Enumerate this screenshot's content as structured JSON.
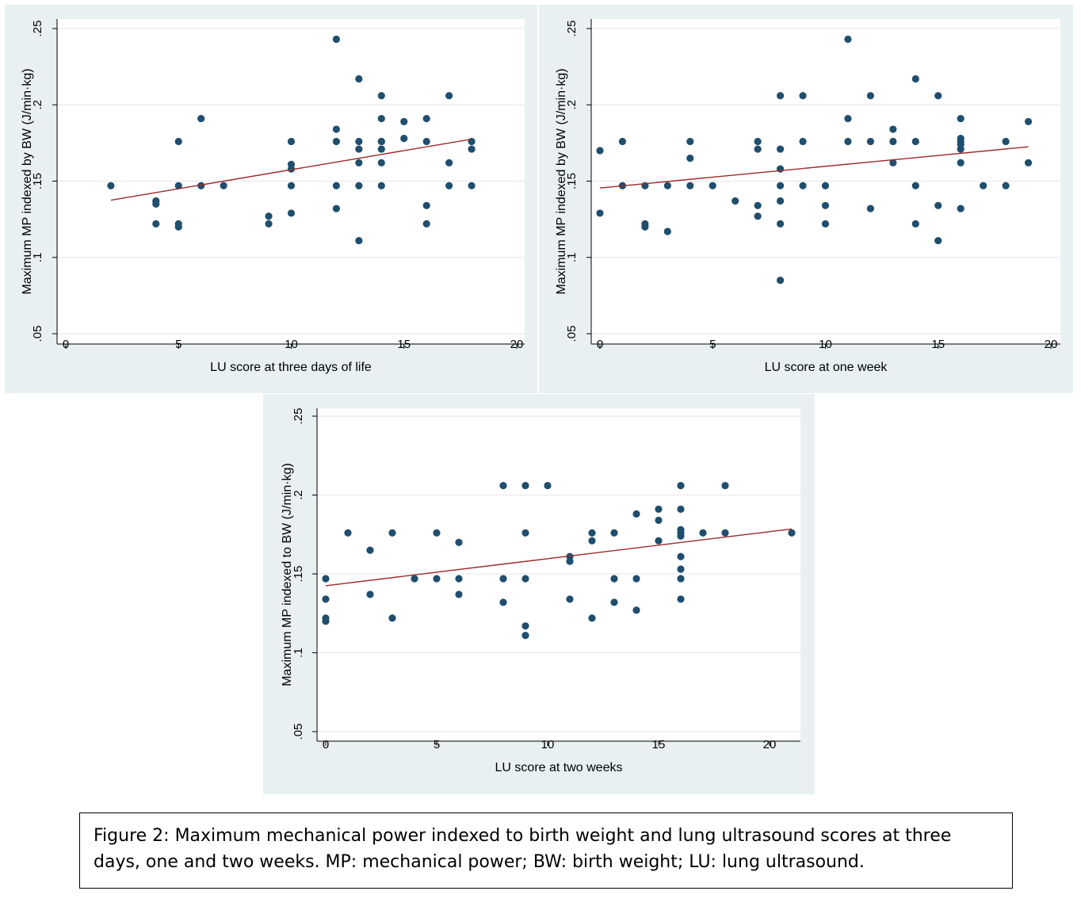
{
  "colors": {
    "panel_bg": "#e9f0f2",
    "plot_bg": "#ffffff",
    "points": "#1f4e6e",
    "fit_line": "#9b2b2b",
    "grid": "#e6e6e6"
  },
  "caption": "Figure 2: Maximum mechanical power indexed to birth weight and lung ultrasound scores at three days, one and two weeks. MP: mechanical power; BW: birth weight; LU: lung ultrasound.",
  "chart_data": [
    {
      "type": "scatter",
      "xlabel": "LU score at three days of life",
      "ylabel": "Maximum MP indexed by BW (J/min·kg)",
      "xlim": [
        0,
        20
      ],
      "ylim": [
        0.05,
        0.25
      ],
      "xticks": [
        "0",
        "5",
        "10",
        "15",
        "20"
      ],
      "yticks": [
        ".05",
        ".1",
        ".15",
        ".2",
        ".25"
      ],
      "grid": true,
      "points": [
        [
          2,
          0.147
        ],
        [
          4,
          0.137
        ],
        [
          4,
          0.135
        ],
        [
          4,
          0.122
        ],
        [
          5,
          0.176
        ],
        [
          5,
          0.147
        ],
        [
          5,
          0.122
        ],
        [
          5,
          0.12
        ],
        [
          6,
          0.191
        ],
        [
          6,
          0.147
        ],
        [
          7,
          0.147
        ],
        [
          9,
          0.127
        ],
        [
          9,
          0.122
        ],
        [
          10,
          0.176
        ],
        [
          10,
          0.161
        ],
        [
          10,
          0.158
        ],
        [
          10,
          0.147
        ],
        [
          10,
          0.129
        ],
        [
          12,
          0.243
        ],
        [
          12,
          0.184
        ],
        [
          12,
          0.176
        ],
        [
          12,
          0.147
        ],
        [
          12,
          0.132
        ],
        [
          13,
          0.217
        ],
        [
          13,
          0.176
        ],
        [
          13,
          0.171
        ],
        [
          13,
          0.162
        ],
        [
          13,
          0.147
        ],
        [
          13,
          0.111
        ],
        [
          14,
          0.206
        ],
        [
          14,
          0.191
        ],
        [
          14,
          0.176
        ],
        [
          14,
          0.176
        ],
        [
          14,
          0.171
        ],
        [
          14,
          0.162
        ],
        [
          14,
          0.147
        ],
        [
          15,
          0.189
        ],
        [
          15,
          0.178
        ],
        [
          16,
          0.191
        ],
        [
          16,
          0.176
        ],
        [
          16,
          0.134
        ],
        [
          16,
          0.122
        ],
        [
          17,
          0.206
        ],
        [
          17,
          0.162
        ],
        [
          17,
          0.147
        ],
        [
          18,
          0.176
        ],
        [
          18,
          0.171
        ],
        [
          18,
          0.147
        ]
      ],
      "fit": {
        "x": [
          2,
          18
        ],
        "y": [
          0.1375,
          0.1775
        ]
      }
    },
    {
      "type": "scatter",
      "xlabel": "LU score at one week",
      "ylabel": "Maximum MP indexed by BW (J/min·kg)",
      "xlim": [
        0,
        20
      ],
      "ylim": [
        0.05,
        0.25
      ],
      "xticks": [
        "0",
        "5",
        "10",
        "15",
        "20"
      ],
      "yticks": [
        ".05",
        ".1",
        ".15",
        ".2",
        ".25"
      ],
      "grid": true,
      "points": [
        [
          0,
          0.17
        ],
        [
          0,
          0.129
        ],
        [
          1,
          0.176
        ],
        [
          1,
          0.147
        ],
        [
          2,
          0.147
        ],
        [
          2,
          0.122
        ],
        [
          2,
          0.12
        ],
        [
          3,
          0.147
        ],
        [
          3,
          0.117
        ],
        [
          4,
          0.176
        ],
        [
          4,
          0.165
        ],
        [
          4,
          0.147
        ],
        [
          5,
          0.147
        ],
        [
          6,
          0.137
        ],
        [
          7,
          0.176
        ],
        [
          7,
          0.171
        ],
        [
          7,
          0.134
        ],
        [
          7,
          0.127
        ],
        [
          8,
          0.206
        ],
        [
          8,
          0.171
        ],
        [
          8,
          0.158
        ],
        [
          8,
          0.147
        ],
        [
          8,
          0.137
        ],
        [
          8,
          0.122
        ],
        [
          8,
          0.085
        ],
        [
          9,
          0.206
        ],
        [
          9,
          0.176
        ],
        [
          9,
          0.147
        ],
        [
          10,
          0.147
        ],
        [
          10,
          0.134
        ],
        [
          10,
          0.122
        ],
        [
          11,
          0.243
        ],
        [
          11,
          0.191
        ],
        [
          11,
          0.176
        ],
        [
          12,
          0.206
        ],
        [
          12,
          0.176
        ],
        [
          12,
          0.132
        ],
        [
          13,
          0.184
        ],
        [
          13,
          0.176
        ],
        [
          13,
          0.162
        ],
        [
          14,
          0.217
        ],
        [
          14,
          0.176
        ],
        [
          14,
          0.147
        ],
        [
          14,
          0.122
        ],
        [
          15,
          0.206
        ],
        [
          15,
          0.134
        ],
        [
          15,
          0.111
        ],
        [
          16,
          0.191
        ],
        [
          16,
          0.178
        ],
        [
          16,
          0.176
        ],
        [
          16,
          0.174
        ],
        [
          16,
          0.171
        ],
        [
          16,
          0.162
        ],
        [
          16,
          0.132
        ],
        [
          17,
          0.147
        ],
        [
          18,
          0.176
        ],
        [
          18,
          0.147
        ],
        [
          19,
          0.189
        ],
        [
          19,
          0.162
        ]
      ],
      "fit": {
        "x": [
          0,
          19
        ],
        "y": [
          0.1455,
          0.1725
        ]
      }
    },
    {
      "type": "scatter",
      "xlabel": "LU score at two weeks",
      "ylabel": "Maximum MP indexed to BW (J/min·kg)",
      "xlim": [
        0,
        21
      ],
      "ylim": [
        0.05,
        0.25
      ],
      "xticks": [
        "0",
        "5",
        "10",
        "15",
        "20"
      ],
      "yticks": [
        ".05",
        ".1",
        ".15",
        ".2",
        ".25"
      ],
      "grid": true,
      "points": [
        [
          0,
          0.147
        ],
        [
          0,
          0.134
        ],
        [
          0,
          0.122
        ],
        [
          0,
          0.12
        ],
        [
          1,
          0.176
        ],
        [
          2,
          0.165
        ],
        [
          2,
          0.137
        ],
        [
          3,
          0.176
        ],
        [
          3,
          0.122
        ],
        [
          4,
          0.147
        ],
        [
          5,
          0.176
        ],
        [
          5,
          0.147
        ],
        [
          6,
          0.17
        ],
        [
          6,
          0.147
        ],
        [
          6,
          0.137
        ],
        [
          8,
          0.206
        ],
        [
          8,
          0.147
        ],
        [
          8,
          0.132
        ],
        [
          9,
          0.206
        ],
        [
          9,
          0.176
        ],
        [
          9,
          0.147
        ],
        [
          9,
          0.117
        ],
        [
          9,
          0.111
        ],
        [
          10,
          0.206
        ],
        [
          11,
          0.161
        ],
        [
          11,
          0.158
        ],
        [
          11,
          0.134
        ],
        [
          12,
          0.176
        ],
        [
          12,
          0.171
        ],
        [
          12,
          0.122
        ],
        [
          13,
          0.176
        ],
        [
          13,
          0.147
        ],
        [
          13,
          0.132
        ],
        [
          14,
          0.188
        ],
        [
          14,
          0.147
        ],
        [
          14,
          0.127
        ],
        [
          15,
          0.191
        ],
        [
          15,
          0.184
        ],
        [
          15,
          0.171
        ],
        [
          16,
          0.206
        ],
        [
          16,
          0.191
        ],
        [
          16,
          0.178
        ],
        [
          16,
          0.176
        ],
        [
          16,
          0.174
        ],
        [
          16,
          0.161
        ],
        [
          16,
          0.153
        ],
        [
          16,
          0.147
        ],
        [
          16,
          0.134
        ],
        [
          17,
          0.176
        ],
        [
          18,
          0.206
        ],
        [
          18,
          0.176
        ],
        [
          21,
          0.176
        ]
      ],
      "fit": {
        "x": [
          0,
          21
        ],
        "y": [
          0.1425,
          0.1785
        ]
      }
    }
  ]
}
